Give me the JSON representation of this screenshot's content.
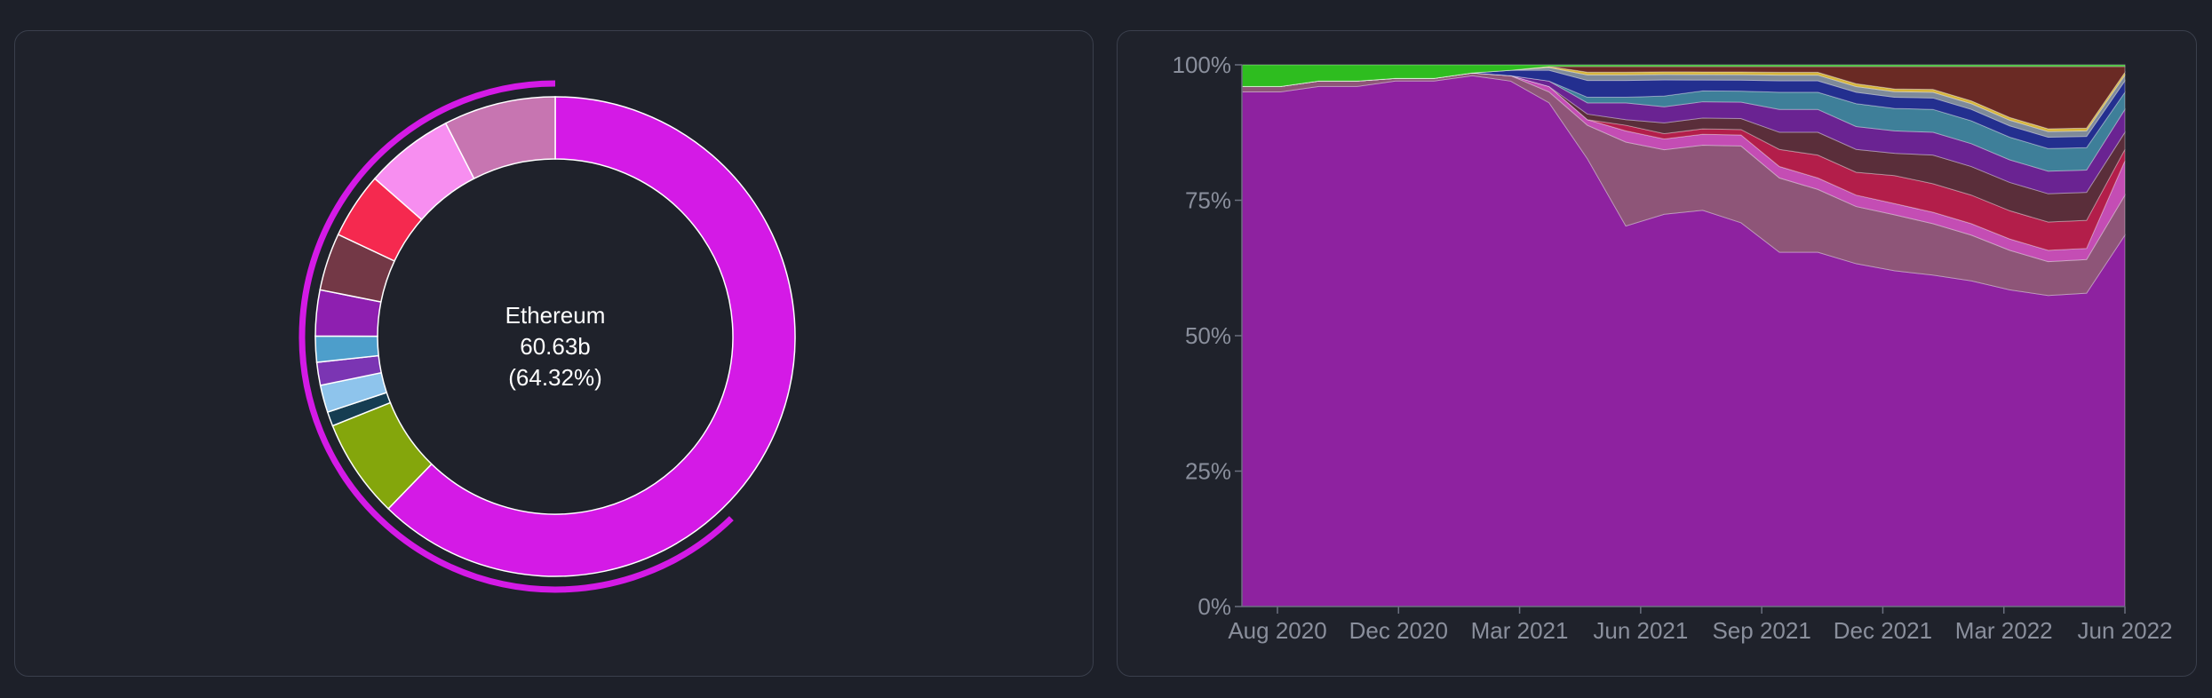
{
  "chart_data": [
    {
      "type": "pie",
      "center_label": {
        "name": "Ethereum",
        "value": "60.63b",
        "percent": "(64.32%)"
      },
      "highlighted": "Ethereum",
      "slices": [
        {
          "value": 64.32,
          "color": "#d41ae6"
        },
        {
          "value": 6.9,
          "color": "#84a60c"
        },
        {
          "value": 1.0,
          "color": "#163d52"
        },
        {
          "value": 1.9,
          "color": "#8ec4ec"
        },
        {
          "value": 1.6,
          "color": "#7b35b3"
        },
        {
          "value": 1.8,
          "color": "#4d9ecb"
        },
        {
          "value": 3.2,
          "color": "#8e1fb0"
        },
        {
          "value": 4.0,
          "color": "#733846"
        },
        {
          "value": 4.6,
          "color": "#f5294f"
        },
        {
          "value": 6.2,
          "color": "#f78ef0"
        },
        {
          "value": 7.8,
          "color": "#c775b1"
        }
      ]
    },
    {
      "type": "area",
      "stacked": true,
      "normalized": true,
      "x_ticks": [
        "Aug 2020",
        "Dec 2020",
        "Mar 2021",
        "Jun 2021",
        "Sep 2021",
        "Dec 2021",
        "Mar 2022",
        "Jun 2022"
      ],
      "y_ticks": [
        "0%",
        "25%",
        "50%",
        "75%",
        "100%"
      ],
      "ylim": [
        0,
        100
      ],
      "x": [
        "2020-07-01",
        "2020-08-01",
        "2020-09-01",
        "2020-10-01",
        "2020-11-01",
        "2020-12-01",
        "2021-01-01",
        "2021-02-01",
        "2021-03-01",
        "2021-04-01",
        "2021-05-01",
        "2021-06-01",
        "2021-07-01",
        "2021-08-01",
        "2021-09-01",
        "2021-10-01",
        "2021-11-01",
        "2021-12-01",
        "2022-01-01",
        "2022-02-01",
        "2022-03-01",
        "2022-04-01",
        "2022-05-01",
        "2022-06-01"
      ],
      "series": [
        {
          "color": "#8e22a0",
          "values": [
            95,
            95,
            96,
            96,
            97,
            97,
            98,
            97,
            93,
            80,
            68,
            73,
            73,
            70,
            62,
            62,
            60,
            60,
            58,
            57,
            56,
            55,
            56,
            65
          ]
        },
        {
          "color": "#8e5578",
          "values": [
            1,
            1,
            1,
            1,
            0.5,
            0.5,
            0.5,
            1,
            2,
            6,
            15,
            12,
            12,
            14,
            13,
            11,
            10,
            10,
            9,
            8,
            7,
            6,
            6,
            7
          ]
        },
        {
          "color": "#c44db4",
          "values": [
            0,
            0,
            0,
            0,
            0,
            0,
            0,
            0,
            1,
            1,
            2,
            2,
            2,
            2,
            2,
            2,
            2,
            2,
            2,
            2,
            2,
            2,
            2,
            6
          ]
        },
        {
          "color": "#b31e4a",
          "values": [
            0,
            0,
            0,
            0,
            0,
            0,
            0,
            0,
            0,
            0,
            1,
            1,
            1,
            1,
            3,
            4,
            4,
            5,
            5,
            5,
            5,
            5,
            5,
            2
          ]
        },
        {
          "color": "#5a2e3a",
          "values": [
            0,
            0,
            0,
            0,
            0,
            0,
            0,
            0,
            0,
            1,
            1,
            2,
            2,
            2,
            3,
            4,
            4,
            4,
            5,
            5,
            5,
            5,
            5,
            3
          ]
        },
        {
          "color": "#6a2392",
          "values": [
            0,
            0,
            0,
            0,
            0,
            0,
            0,
            0,
            1,
            2,
            3,
            3,
            3,
            3,
            4,
            4,
            4,
            4,
            4,
            4,
            4,
            4,
            4,
            4
          ]
        },
        {
          "color": "#3e7f99",
          "values": [
            0,
            0,
            0,
            0,
            0,
            0,
            0,
            0,
            0,
            1,
            1,
            2,
            2,
            2,
            3,
            3,
            4,
            4,
            4,
            4,
            4,
            4,
            4,
            3
          ]
        },
        {
          "color": "#232f8f",
          "values": [
            0,
            0,
            0,
            0,
            0,
            0,
            0,
            1,
            2,
            3,
            3,
            3,
            2,
            2,
            2,
            2,
            2,
            2,
            2,
            2,
            2,
            2,
            2,
            2
          ]
        },
        {
          "color": "#7e8a9a",
          "values": [
            0,
            0,
            0,
            0,
            0,
            0,
            0,
            0,
            0.5,
            1,
            1,
            1,
            1,
            1,
            1,
            1,
            1,
            1,
            1,
            1,
            1,
            1,
            1,
            1
          ]
        },
        {
          "color": "#d6b43a",
          "values": [
            0,
            0,
            0,
            0,
            0,
            0,
            0,
            0,
            0.2,
            0.5,
            0.5,
            0.5,
            0.5,
            0.5,
            0.5,
            0.5,
            0.5,
            0.5,
            0.5,
            0.5,
            0.5,
            0.5,
            0.5,
            0.5
          ]
        },
        {
          "color": "#6a2a24",
          "values": [
            0,
            0,
            0,
            0,
            0,
            0,
            0,
            0,
            0,
            1,
            1,
            1,
            1,
            1,
            1,
            1,
            3,
            4,
            4,
            6,
            9,
            11,
            11,
            1
          ]
        },
        {
          "color": "#2ebd1f",
          "values": [
            4,
            4,
            3,
            3,
            2.5,
            2.5,
            1.5,
            1,
            0.3,
            0.3,
            0.3,
            0.3,
            0.3,
            0.3,
            0.3,
            0.3,
            0.3,
            0.3,
            0.3,
            0.3,
            0.3,
            0.3,
            0.3,
            0.3
          ]
        }
      ]
    }
  ]
}
